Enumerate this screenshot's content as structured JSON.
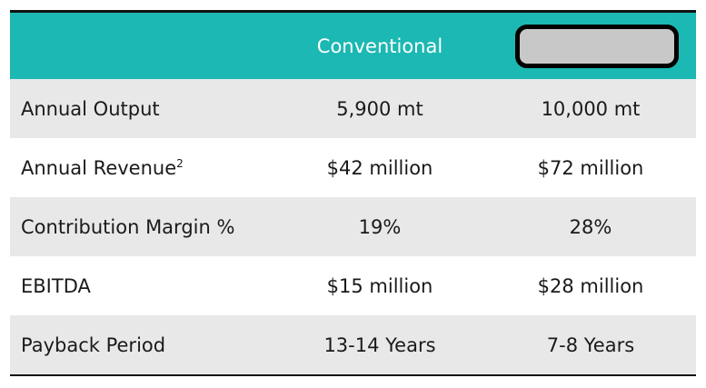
{
  "table": {
    "headers": [
      "",
      "Conventional",
      ""
    ],
    "rows": [
      {
        "label": "Annual Output",
        "superscript": "",
        "conventional": "5,900 mt",
        "other": "10,000 mt"
      },
      {
        "label": "Annual Revenue",
        "superscript": "2",
        "conventional": "$42 million",
        "other": "$72 million"
      },
      {
        "label": "Contribution Margin %",
        "superscript": "",
        "conventional": "19%",
        "other": "28%"
      },
      {
        "label": "EBITDA",
        "superscript": "",
        "conventional": "$15 million",
        "other": "$28 million"
      },
      {
        "label": "Payback Period",
        "superscript": "",
        "conventional": "13-14 Years",
        "other": "7-8 Years"
      }
    ]
  },
  "colors": {
    "header_bg": "#1cb8b3",
    "shaded_row": "#e8e8e8",
    "redaction_fill": "#c8c8c8"
  }
}
